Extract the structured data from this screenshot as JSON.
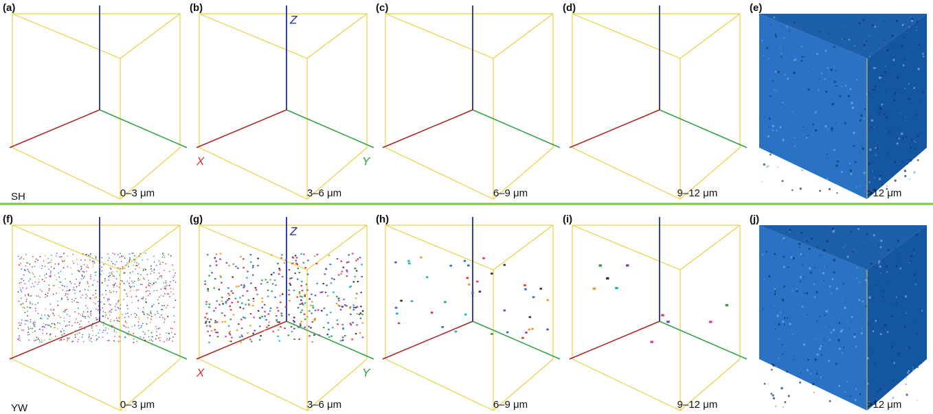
{
  "rows": [
    {
      "label": "SH",
      "axes": {
        "x": "X",
        "y": "Y",
        "z": "Z"
      },
      "panels": [
        {
          "letter": "(a)",
          "range": "0–3 μm"
        },
        {
          "letter": "(b)",
          "range": "3–6 μm"
        },
        {
          "letter": "(c)",
          "range": "6–9 μm"
        },
        {
          "letter": "(d)",
          "range": "9–12 μm"
        },
        {
          "letter": "(e)",
          "range": ">12 μm"
        }
      ]
    },
    {
      "label": "YW",
      "axes": {
        "x": "X",
        "y": "Y",
        "z": "Z"
      },
      "panels": [
        {
          "letter": "(f)",
          "range": "0–3 μm"
        },
        {
          "letter": "(g)",
          "range": "3–6 μm"
        },
        {
          "letter": "(h)",
          "range": "6–9 μm"
        },
        {
          "letter": "(i)",
          "range": "9–12 μm"
        },
        {
          "letter": "(j)",
          "range": ">12 μm"
        }
      ]
    }
  ]
}
